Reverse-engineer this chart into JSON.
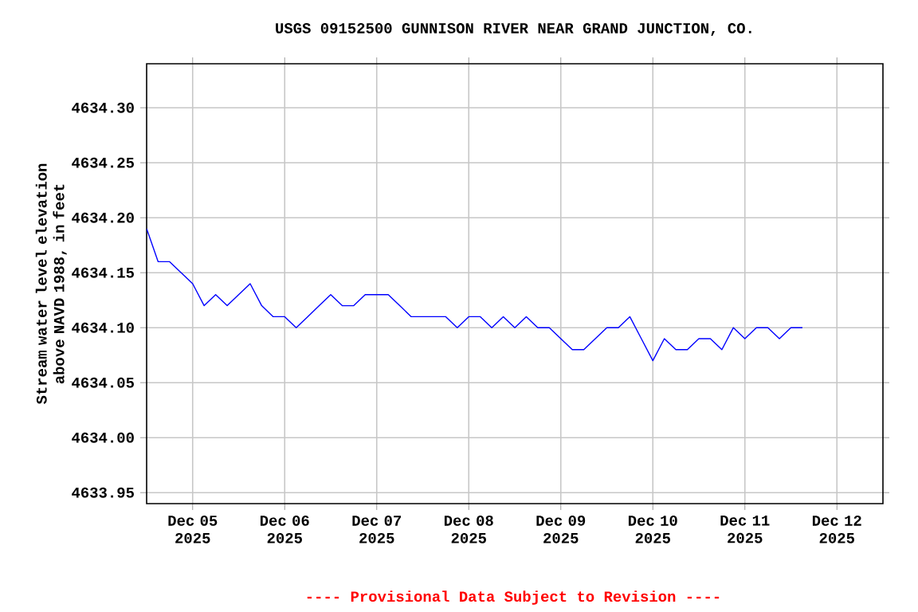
{
  "chart_data": {
    "type": "line",
    "title": "USGS 09152500 GUNNISON RIVER NEAR GRAND JUNCTION, CO.",
    "ylabel": "Stream water level elevation above NAVD 1988, in feet",
    "annotations": [
      "---- Provisional Data Subject to Revision ----"
    ],
    "x": [
      "2025-12-04T12:00",
      "2025-12-04T15:00",
      "2025-12-04T18:00",
      "2025-12-04T21:00",
      "2025-12-05T00:00",
      "2025-12-05T03:00",
      "2025-12-05T06:00",
      "2025-12-05T09:00",
      "2025-12-05T12:00",
      "2025-12-05T15:00",
      "2025-12-05T18:00",
      "2025-12-05T21:00",
      "2025-12-06T00:00",
      "2025-12-06T03:00",
      "2025-12-06T06:00",
      "2025-12-06T09:00",
      "2025-12-06T12:00",
      "2025-12-06T15:00",
      "2025-12-06T18:00",
      "2025-12-06T21:00",
      "2025-12-07T00:00",
      "2025-12-07T03:00",
      "2025-12-07T06:00",
      "2025-12-07T09:00",
      "2025-12-07T12:00",
      "2025-12-07T15:00",
      "2025-12-07T18:00",
      "2025-12-07T21:00",
      "2025-12-08T00:00",
      "2025-12-08T03:00",
      "2025-12-08T06:00",
      "2025-12-08T09:00",
      "2025-12-08T12:00",
      "2025-12-08T15:00",
      "2025-12-08T18:00",
      "2025-12-08T21:00",
      "2025-12-09T00:00",
      "2025-12-09T03:00",
      "2025-12-09T06:00",
      "2025-12-09T09:00",
      "2025-12-09T12:00",
      "2025-12-09T15:00",
      "2025-12-09T18:00",
      "2025-12-09T21:00",
      "2025-12-10T00:00",
      "2025-12-10T03:00",
      "2025-12-10T06:00",
      "2025-12-10T09:00",
      "2025-12-10T12:00",
      "2025-12-10T15:00",
      "2025-12-10T18:00",
      "2025-12-10T21:00",
      "2025-12-11T00:00",
      "2025-12-11T03:00",
      "2025-12-11T06:00",
      "2025-12-11T09:00",
      "2025-12-11T12:00",
      "2025-12-11T15:00"
    ],
    "series": [
      {
        "color": "#0000ff",
        "values": [
          4634.19,
          4634.16,
          4634.16,
          4634.15,
          4634.14,
          4634.12,
          4634.13,
          4634.12,
          4634.13,
          4634.14,
          4634.12,
          4634.11,
          4634.11,
          4634.1,
          4634.11,
          4634.12,
          4634.13,
          4634.12,
          4634.12,
          4634.13,
          4634.13,
          4634.13,
          4634.12,
          4634.11,
          4634.11,
          4634.11,
          4634.11,
          4634.1,
          4634.11,
          4634.11,
          4634.1,
          4634.11,
          4634.1,
          4634.11,
          4634.1,
          4634.1,
          4634.09,
          4634.08,
          4634.08,
          4634.09,
          4634.1,
          4634.1,
          4634.11,
          4634.09,
          4634.07,
          4634.09,
          4634.08,
          4634.08,
          4634.09,
          4634.09,
          4634.08,
          4634.1,
          4634.09,
          4634.1,
          4634.1,
          4634.09,
          4634.1,
          4634.1
        ]
      }
    ],
    "xlim": [
      "2025-12-04T12:00",
      "2025-12-12T12:00"
    ],
    "xticks": [
      {
        "value": "2025-12-05",
        "label": "Dec 05 2025"
      },
      {
        "value": "2025-12-06",
        "label": "Dec 06 2025"
      },
      {
        "value": "2025-12-07",
        "label": "Dec 07 2025"
      },
      {
        "value": "2025-12-08",
        "label": "Dec 08 2025"
      },
      {
        "value": "2025-12-09",
        "label": "Dec 09 2025"
      },
      {
        "value": "2025-12-10",
        "label": "Dec 10 2025"
      },
      {
        "value": "2025-12-11",
        "label": "Dec 11 2025"
      },
      {
        "value": "2025-12-12",
        "label": "Dec 12 2025"
      }
    ],
    "ylim": [
      4633.94,
      4634.34
    ],
    "yticks": [
      {
        "value": 4633.95,
        "label": "4633.95"
      },
      {
        "value": 4634.0,
        "label": "4634.00"
      },
      {
        "value": 4634.05,
        "label": "4634.05"
      },
      {
        "value": 4634.1,
        "label": "4634.10"
      },
      {
        "value": 4634.15,
        "label": "4634.15"
      },
      {
        "value": 4634.2,
        "label": "4634.20"
      },
      {
        "value": 4634.25,
        "label": "4634.25"
      },
      {
        "value": 4634.3,
        "label": "4634.30"
      }
    ],
    "grid": true,
    "marker": "none",
    "line_style": "solid"
  }
}
